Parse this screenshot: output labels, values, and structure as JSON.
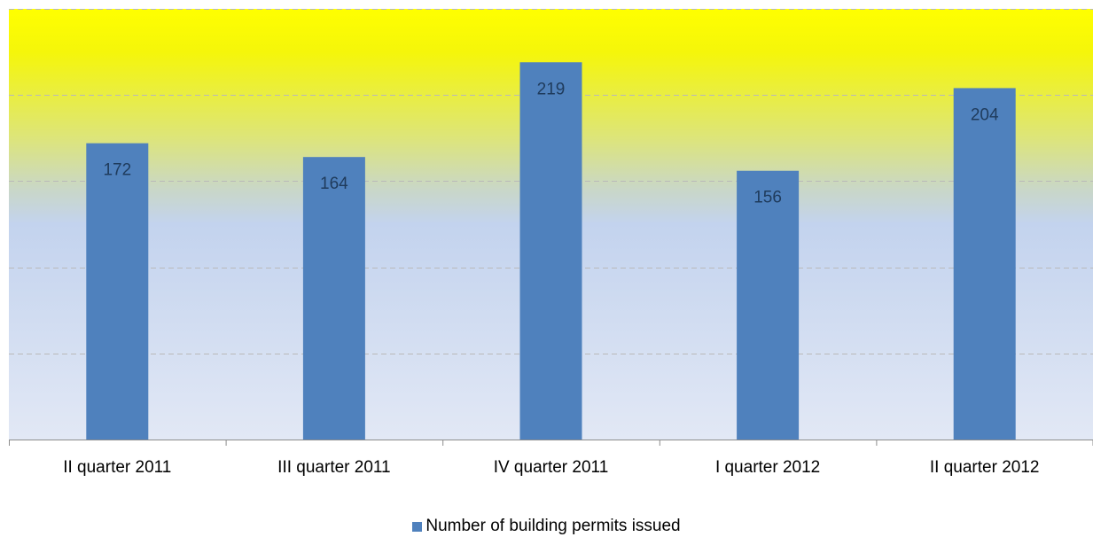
{
  "chart_data": {
    "type": "bar",
    "categories": [
      "II quarter 2011",
      "III quarter 2011",
      "IV quarter 2011",
      "I quarter 2012",
      "II quarter 2012"
    ],
    "series": [
      {
        "name": "Number of building permits issued",
        "values": [
          172,
          164,
          219,
          156,
          204
        ],
        "color": "#4f81bd"
      }
    ],
    "ylim": [
      0,
      250
    ],
    "y_gridline_step": 50,
    "grid": true,
    "y_tick_labels_visible": false,
    "data_labels": true,
    "legend_position": "bottom",
    "background_gradient": [
      "#ffff00",
      "#c3d3ee",
      "#e2e8f5"
    ]
  }
}
